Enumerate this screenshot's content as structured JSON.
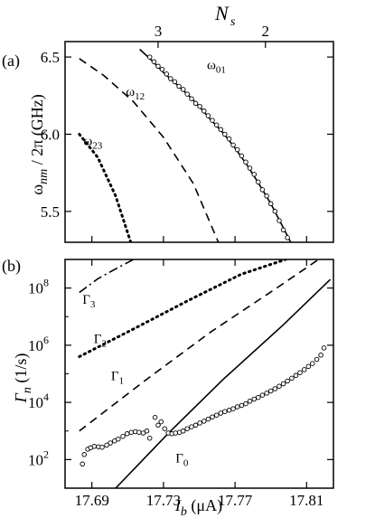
{
  "chart_data": [
    {
      "panel_label": "(a)",
      "type": "line",
      "top_axis": {
        "label_base": "N",
        "label_sub": "s",
        "ticks": [
          {
            "label": "3",
            "at_x": 17.727
          },
          {
            "label": "2",
            "at_x": 17.787
          }
        ]
      },
      "xlim": [
        17.675,
        17.825
      ],
      "ylim": [
        5.3,
        6.6
      ],
      "yticks": [
        5.5,
        6.0,
        6.5
      ],
      "ytick_labels": [
        "5.5",
        "6.0",
        "6.5"
      ],
      "ylabel": {
        "pre": "ω",
        "sub": "nm",
        "post": " / 2π (GHz)"
      },
      "series": [
        {
          "name": "ω01",
          "style": "solid",
          "x": [
            17.7167,
            17.7233,
            17.73,
            17.7367,
            17.7433,
            17.75,
            17.7567,
            17.7633,
            17.77,
            17.7767,
            17.7833,
            17.79,
            17.7967,
            17.8033
          ],
          "y": [
            6.55,
            6.48,
            6.4,
            6.33,
            6.26,
            6.18,
            6.09,
            6.01,
            5.91,
            5.8,
            5.68,
            5.55,
            5.4,
            5.25
          ]
        },
        {
          "name": "ω12",
          "style": "dashed",
          "x": [
            17.683,
            17.6967,
            17.7133,
            17.73,
            17.7467,
            17.7633
          ],
          "y": [
            6.49,
            6.38,
            6.21,
            5.98,
            5.68,
            5.23
          ]
        },
        {
          "name": "ω23",
          "style": "dotted",
          "x": [
            17.683,
            17.6933,
            17.7033,
            17.7117
          ],
          "y": [
            6.0,
            5.85,
            5.6,
            5.3
          ]
        }
      ],
      "markers": {
        "series": "ω01",
        "x": [
          17.7223,
          17.7247,
          17.727,
          17.7293,
          17.7317,
          17.734,
          17.7363,
          17.7387,
          17.741,
          17.7433,
          17.7457,
          17.748,
          17.7503,
          17.7527,
          17.755,
          17.7573,
          17.7597,
          17.762,
          17.7643,
          17.7667,
          17.769,
          17.7713,
          17.7737,
          17.776,
          17.7783,
          17.7807,
          17.783,
          17.7853,
          17.7877,
          17.79,
          17.7923,
          17.7947,
          17.797,
          17.7993,
          17.8017,
          17.804
        ],
        "y": [
          6.5,
          6.47,
          6.44,
          6.42,
          6.39,
          6.36,
          6.34,
          6.31,
          6.29,
          6.26,
          6.23,
          6.2,
          6.18,
          6.15,
          6.12,
          6.09,
          6.06,
          6.03,
          6.0,
          5.97,
          5.93,
          5.9,
          5.86,
          5.82,
          5.78,
          5.74,
          5.69,
          5.64,
          5.6,
          5.55,
          5.5,
          5.44,
          5.38,
          5.33,
          5.27,
          5.21
        ]
      },
      "annotations": [
        {
          "base": "ω",
          "sub": "01",
          "x": 17.7543,
          "y": 6.42
        },
        {
          "base": "ω",
          "sub": "12",
          "x": 17.709,
          "y": 6.25
        },
        {
          "base": "ω",
          "sub": "23",
          "x": 17.6853,
          "y": 5.93
        }
      ]
    },
    {
      "panel_label": "(b)",
      "type": "line",
      "xlim": [
        17.675,
        17.825
      ],
      "yscale": "log",
      "ylim": [
        10,
        1000000000
      ],
      "xticks": [
        17.69,
        17.73,
        17.77,
        17.81
      ],
      "xtick_labels": [
        "17.69",
        "17.73",
        "17.77",
        "17.81"
      ],
      "yticks": [
        100,
        10000,
        1000000,
        100000000
      ],
      "ytick_labels": [
        {
          "base": "10",
          "exp": "2"
        },
        {
          "base": "10",
          "exp": "4"
        },
        {
          "base": "10",
          "exp": "6"
        },
        {
          "base": "10",
          "exp": "8"
        }
      ],
      "xlabel": {
        "base": "I",
        "sub": "b",
        "post": " (μA)"
      },
      "ylabel": {
        "base": "Γ",
        "sub": "n",
        "post": " (1/s)"
      },
      "series": [
        {
          "name": "Γ0",
          "style": "solid",
          "x": [
            17.7033,
            17.7333,
            17.7633,
            17.7967,
            17.8233
          ],
          "y": [
            10,
            900,
            63000,
            5000000,
            200000000
          ]
        },
        {
          "name": "Γ1",
          "style": "dashed",
          "x": [
            17.683,
            17.72,
            17.7567,
            17.7933,
            17.8167
          ],
          "y": [
            1000,
            60000,
            3000000,
            100000000,
            1000000000
          ]
        },
        {
          "name": "Γ2",
          "style": "dotted",
          "x": [
            17.683,
            17.7133,
            17.7433,
            17.7733,
            17.7983
          ],
          "y": [
            400000,
            3700000,
            35000000,
            300000000,
            1000000000
          ]
        },
        {
          "name": "Γ3",
          "style": "dashdot",
          "x": [
            17.683,
            17.6933,
            17.7033,
            17.7133
          ],
          "y": [
            70000000,
            210000000,
            470000000,
            1000000000
          ]
        }
      ],
      "measured": {
        "x": [
          17.6847,
          17.6857,
          17.6877,
          17.6893,
          17.6913,
          17.6937,
          17.6957,
          17.6983,
          17.7003,
          17.7027,
          17.7047,
          17.7073,
          17.7097,
          17.712,
          17.7143,
          17.7163,
          17.7187,
          17.7207,
          17.7223,
          17.7253,
          17.727,
          17.7287,
          17.7307,
          17.7327,
          17.7347,
          17.7367,
          17.739,
          17.741,
          17.7433,
          17.7457,
          17.748,
          17.7503,
          17.7527,
          17.755,
          17.7573,
          17.7597,
          17.762,
          17.7643,
          17.7667,
          17.769,
          17.7713,
          17.7737,
          17.776,
          17.7783,
          17.7807,
          17.783,
          17.7853,
          17.7877,
          17.79,
          17.7923,
          17.7947,
          17.797,
          17.7993,
          17.8017,
          17.804,
          17.8063,
          17.8087,
          17.811,
          17.8133,
          17.8157,
          17.818,
          17.8197
        ],
        "y": [
          70,
          150,
          230,
          260,
          290,
          280,
          270,
          320,
          380,
          450,
          520,
          650,
          800,
          900,
          950,
          900,
          850,
          1000,
          560,
          3000,
          1600,
          2100,
          1200,
          850,
          800,
          850,
          900,
          1000,
          1200,
          1400,
          1600,
          1900,
          2200,
          2600,
          3100,
          3600,
          4200,
          4800,
          5300,
          6000,
          7000,
          7800,
          9000,
          11000,
          13000,
          15000,
          18000,
          21000,
          25000,
          30000,
          37000,
          45000,
          56000,
          70000,
          88000,
          110000,
          140000,
          180000,
          230000,
          320000,
          450000,
          800000
        ]
      },
      "annotations": [
        {
          "base": "Γ",
          "sub": "3",
          "x": 17.6847,
          "y": 28000000
        },
        {
          "base": "Γ",
          "sub": "2",
          "x": 17.691,
          "y": 1200000
        },
        {
          "base": "Γ",
          "sub": "1",
          "x": 17.7007,
          "y": 60000
        },
        {
          "base": "Γ",
          "sub": "0",
          "x": 17.7367,
          "y": 80
        }
      ]
    }
  ]
}
